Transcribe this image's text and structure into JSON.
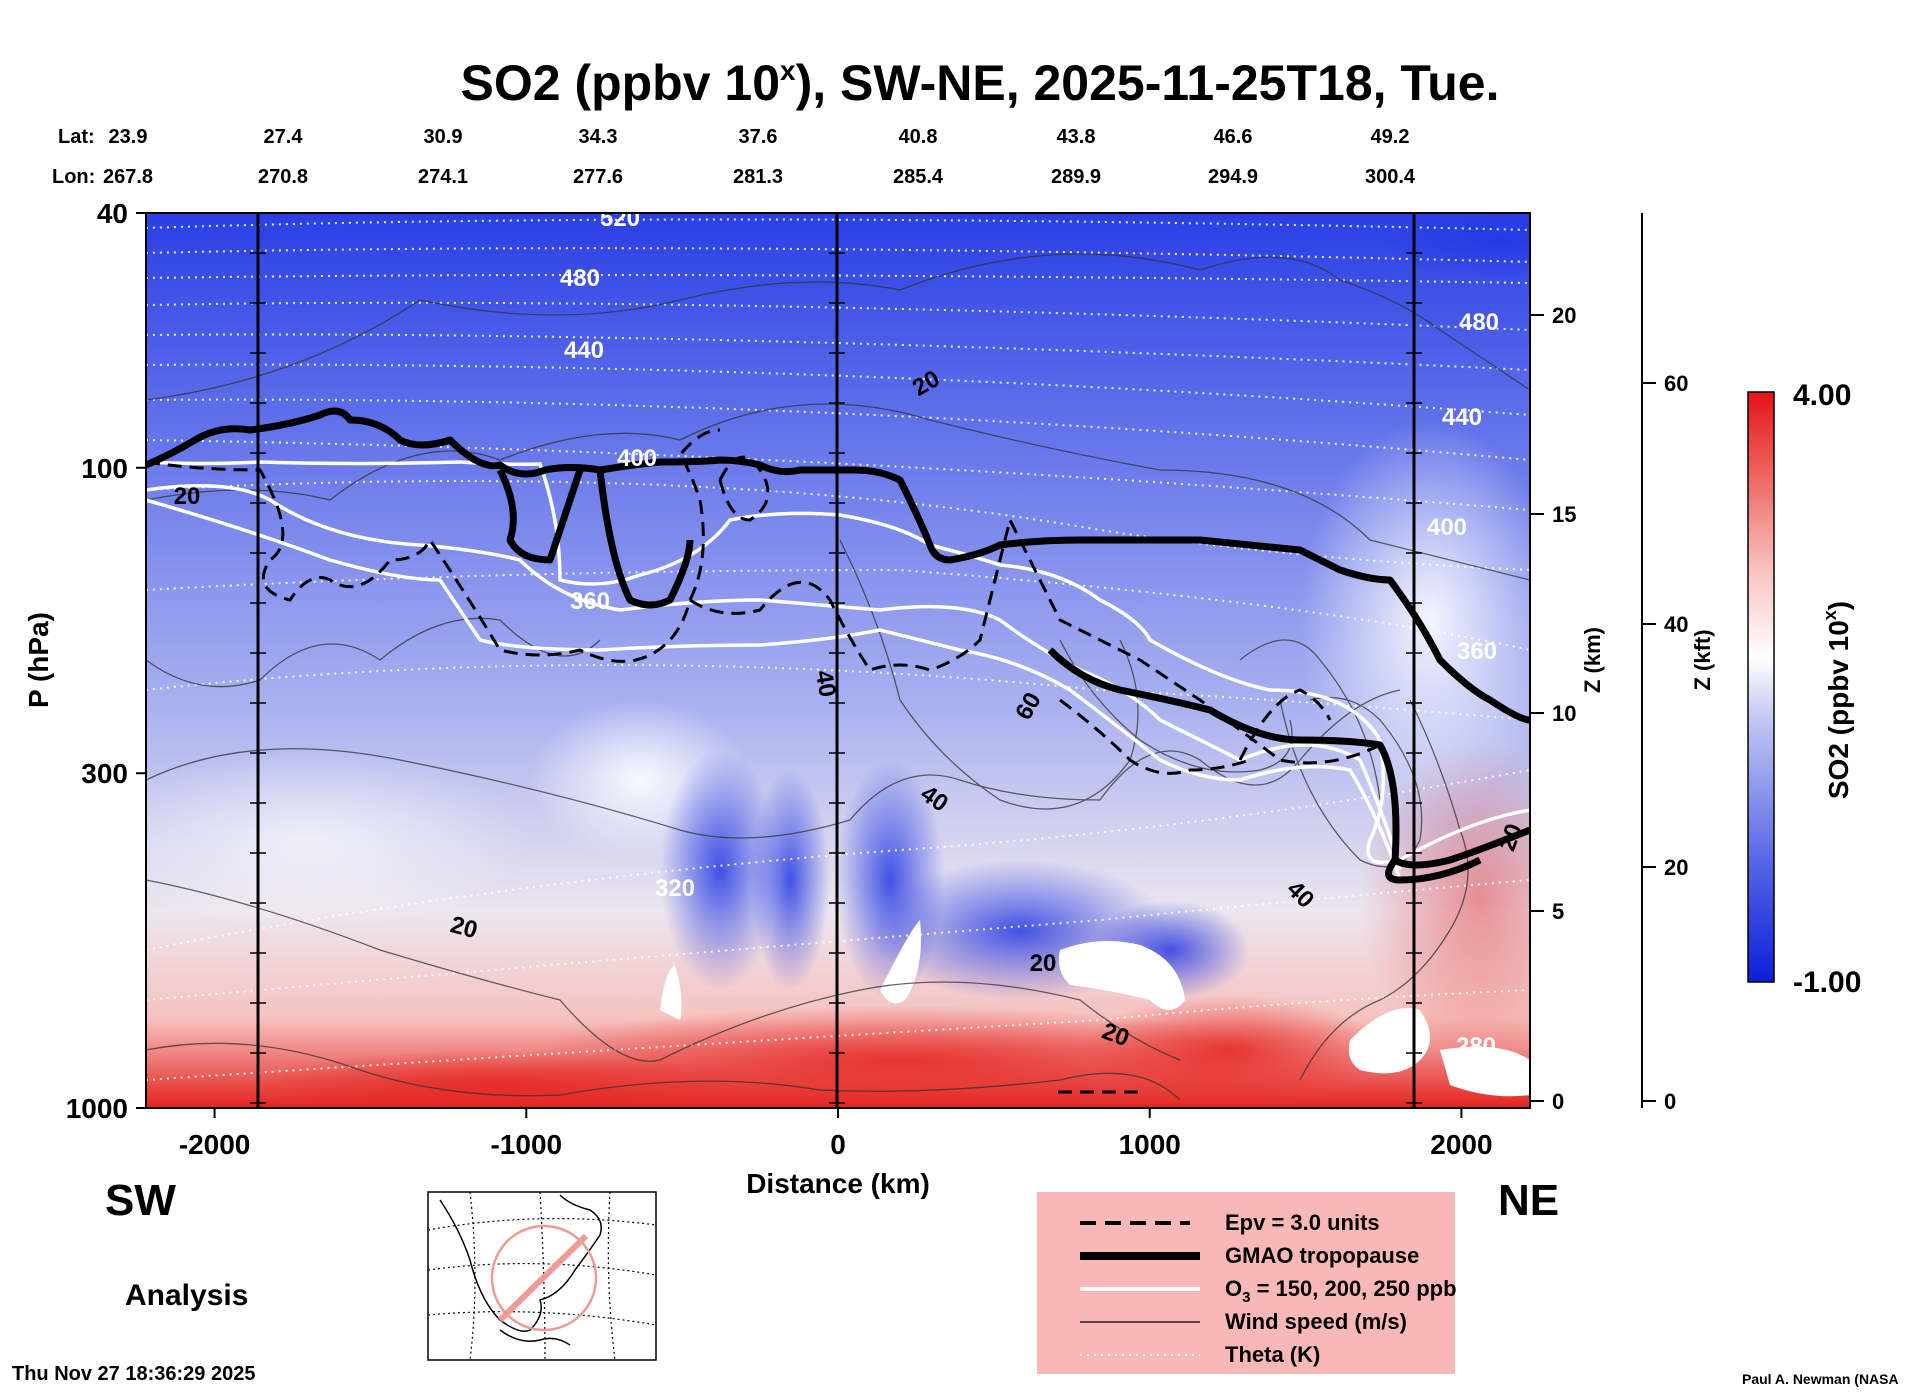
{
  "chart_data": {
    "type": "heatmap",
    "title": "SO2 (ppbv 10",
    "title_sup": "x",
    "title_rest": "), SW-NE, 2025-11-25T18, Tue.",
    "lat_label": "Lat:",
    "lon_label": "Lon:",
    "lats": [
      "23.9",
      "27.4",
      "30.9",
      "34.3",
      "37.6",
      "40.8",
      "43.8",
      "46.6",
      "49.2"
    ],
    "lons": [
      "267.8",
      "270.8",
      "274.1",
      "277.6",
      "281.3",
      "285.4",
      "289.9",
      "294.9",
      "300.4"
    ],
    "xlabel": "Distance (km)",
    "x_ticks": [
      -2000,
      -1000,
      0,
      1000,
      2000
    ],
    "x_tick_labels": [
      "-2000",
      "-1000",
      "0",
      "1000",
      "2000"
    ],
    "xlim": [
      -2220,
      2220
    ],
    "ylabel": "P (hPa)",
    "y_ticks": [
      40,
      100,
      300,
      1000
    ],
    "y_tick_labels": [
      "40",
      "100",
      "300",
      "1000"
    ],
    "ylim": [
      1000,
      40
    ],
    "z_km_label": "Z (km)",
    "z_km_ticks": [
      "0",
      "5",
      "10",
      "15",
      "20"
    ],
    "z_kft_label": "Z (kft)",
    "z_kft_ticks": [
      "0",
      "20",
      "40",
      "60"
    ],
    "colorbar": {
      "label": "SO2 (ppbv 10",
      "sup": "x",
      "close": ")",
      "max": "4.00",
      "min": "-1.00"
    },
    "left_end": "SW",
    "right_end": "NE",
    "mode_label": "Analysis",
    "theta_contour_labels": [
      "520",
      "480",
      "440",
      "400",
      "360",
      "320",
      "280"
    ],
    "wind_contour_labels": [
      "20",
      "40",
      "60"
    ],
    "legend": [
      {
        "label": "Epv = 3.0 units"
      },
      {
        "label": "GMAO tropopause"
      },
      {
        "label": "O",
        "sub": "3",
        "rest": " = 150, 200, 250 ppb"
      },
      {
        "label": "Wind speed (m/s)"
      },
      {
        "label": "Theta (K)"
      }
    ],
    "timestamp": "Thu Nov 27 18:36:29 2025",
    "credit": "Paul A. Newman (NASA"
  },
  "colors": {
    "so2_high": "#e8201c",
    "so2_low": "#1a2fe0",
    "so2_mid": "#ffffff",
    "legend_bg": "#f9b8b8"
  }
}
